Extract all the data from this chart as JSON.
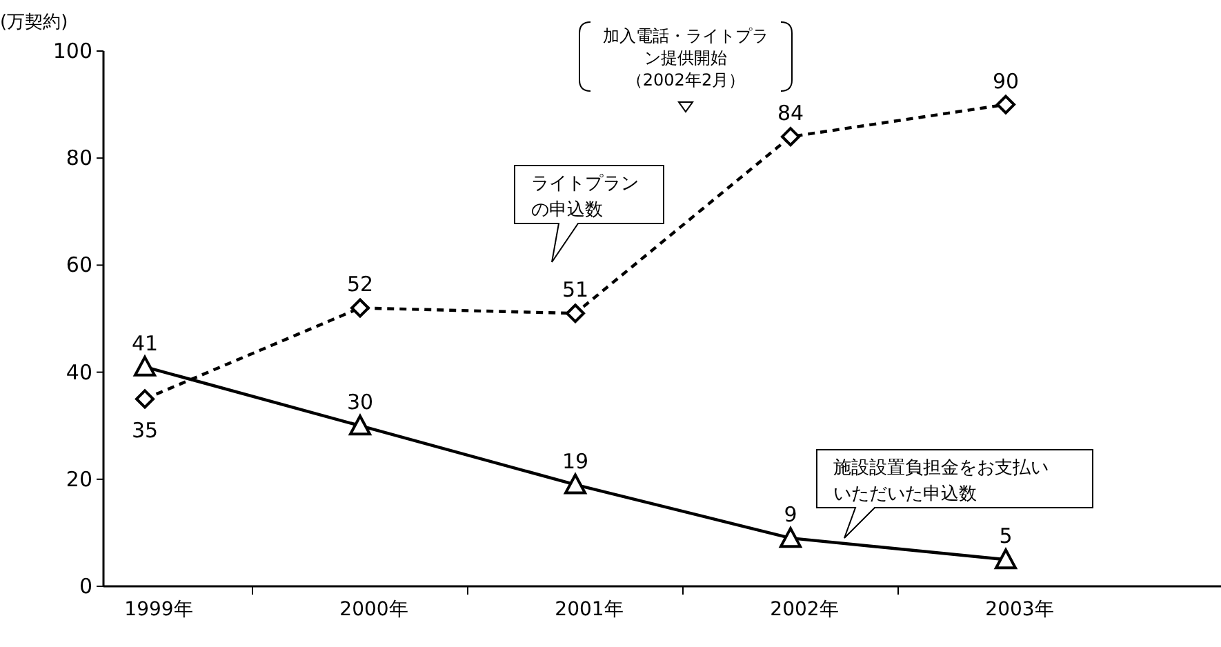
{
  "chart_data": {
    "type": "line",
    "ylabel": "(万契約)",
    "categories": [
      "1999年",
      "2000年",
      "2001年",
      "2002年",
      "2003年"
    ],
    "ylim": [
      0,
      100
    ],
    "yticks": [
      0,
      20,
      40,
      60,
      80,
      100
    ],
    "grid": false,
    "legend": false,
    "data_labels": true,
    "series": [
      {
        "name": "ライトプランの申込数",
        "color": "#000000",
        "values": [
          35,
          52,
          51,
          84,
          90
        ],
        "marker": "diamond",
        "line_style": "dashed"
      },
      {
        "name": "施設設置負担金をお支払いいただいた申込数",
        "color": "#000000",
        "values": [
          41,
          30,
          19,
          9,
          5
        ],
        "marker": "triangle",
        "line_style": "solid"
      }
    ],
    "annotations": [
      "加入電話・ライトプラン提供開始（2002年2月）"
    ]
  }
}
